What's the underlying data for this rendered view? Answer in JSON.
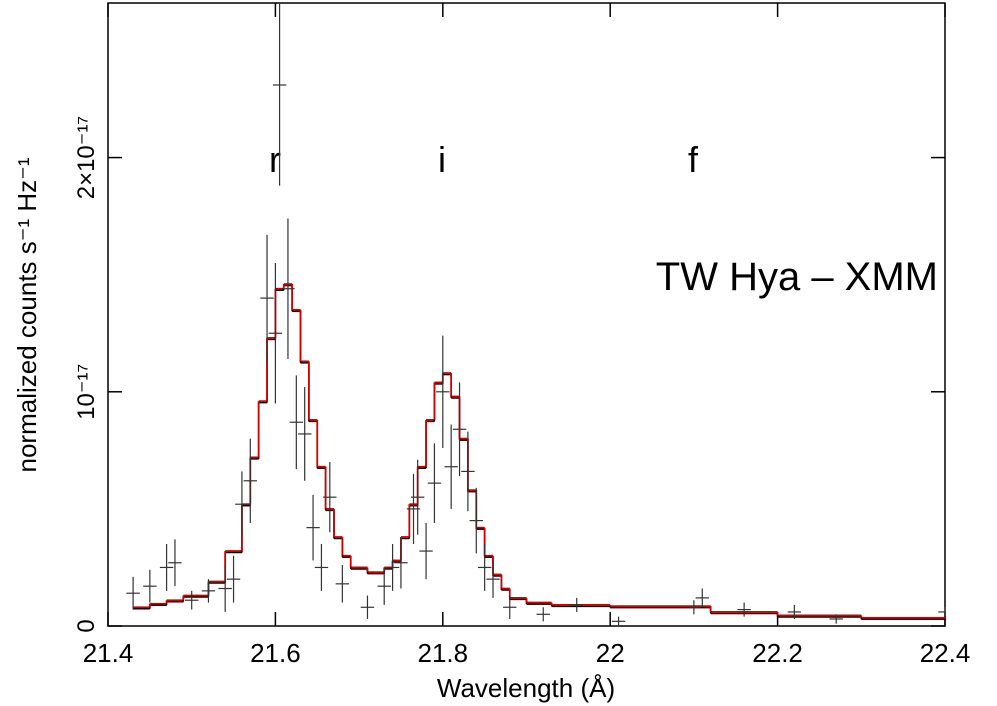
{
  "chart_data": {
    "type": "spectrum",
    "xlabel": "Wavelength (Å)",
    "ylabel": "normalized counts s⁻¹ Hz⁻¹",
    "annotations": [
      "r",
      "i",
      "f",
      "TW Hya – XMM"
    ],
    "xlim": [
      21.4,
      22.4
    ],
    "xticks": [
      21.4,
      21.6,
      21.8,
      22,
      22.2,
      22.4
    ],
    "ylim": [
      0,
      2.66e-17
    ],
    "yticks": [
      0,
      {
        "value": 1e-17,
        "label": "10⁻¹⁷"
      },
      {
        "value": 2e-17,
        "label": "2×10⁻¹⁷"
      }
    ],
    "data_color": "#333333",
    "xerr": 0.008,
    "x": [
      21.43,
      21.45,
      21.47,
      21.48,
      21.5,
      21.52,
      21.54,
      21.55,
      21.56,
      21.57,
      21.59,
      21.6,
      21.605,
      21.615,
      21.625,
      21.635,
      21.645,
      21.655,
      21.665,
      21.68,
      21.71,
      21.73,
      21.74,
      21.75,
      21.765,
      21.77,
      21.78,
      21.79,
      21.8,
      21.81,
      21.82,
      21.83,
      21.84,
      21.85,
      21.86,
      21.88,
      21.92,
      21.96,
      22.01,
      22.1,
      22.11,
      22.16,
      22.22,
      22.27,
      22.4
    ],
    "values": [
      1.4e-18,
      1.7e-18,
      2.5e-18,
      2.7e-18,
      1.1e-18,
      1.5e-18,
      1.6e-18,
      2e-18,
      5.2e-18,
      6.2e-18,
      1.4e-17,
      1.25e-17,
      2.31e-17,
      1.44e-17,
      8.7e-18,
      8.2e-18,
      4.2e-18,
      2.5e-18,
      5.5e-18,
      1.8e-18,
      8e-19,
      1.7e-18,
      2.5e-18,
      2.7e-18,
      5e-18,
      5.5e-18,
      3.2e-18,
      6.1e-18,
      1e-17,
      6.8e-18,
      8.4e-18,
      6.6e-18,
      4.5e-18,
      2.5e-18,
      2e-18,
      8e-19,
      5e-19,
      9e-19,
      2e-19,
      8e-19,
      1.2e-18,
      7e-19,
      6e-19,
      3e-19,
      6e-19
    ],
    "yerr": [
      7e-19,
      7e-19,
      1e-18,
      1e-18,
      4e-19,
      5e-19,
      1e-18,
      1e-18,
      1.4e-18,
      1.8e-18,
      2.7e-18,
      3e-18,
      4.3e-18,
      3e-18,
      2e-18,
      2e-18,
      1.4e-18,
      1e-18,
      1.5e-18,
      8e-19,
      5e-19,
      8e-19,
      1e-18,
      1.1e-18,
      1.5e-18,
      1.6e-18,
      1.2e-18,
      1.7e-18,
      2.4e-18,
      1.8e-18,
      2e-18,
      1.7e-18,
      1.4e-18,
      1e-18,
      8e-19,
      5e-19,
      3e-19,
      3e-19,
      2e-19,
      3e-19,
      4e-19,
      3e-19,
      3e-19,
      2e-19,
      2e-19
    ],
    "model": {
      "color": "#d00000",
      "bins": [
        21.43,
        21.45,
        21.47,
        21.49,
        21.52,
        21.54,
        21.56,
        21.57,
        21.58,
        21.59,
        21.6,
        21.61,
        21.62,
        21.63,
        21.64,
        21.65,
        21.66,
        21.67,
        21.68,
        21.69,
        21.71,
        21.73,
        21.74,
        21.75,
        21.76,
        21.77,
        21.78,
        21.79,
        21.8,
        21.81,
        21.82,
        21.83,
        21.84,
        21.85,
        21.86,
        21.87,
        21.88,
        21.9,
        21.93,
        22.0,
        22.12,
        22.2,
        22.3,
        22.4
      ],
      "values": [
        8e-19,
        9.5e-19,
        1.1e-18,
        1.3e-18,
        1.9e-18,
        3.2e-18,
        5.2e-18,
        7.2e-18,
        9.6e-18,
        1.23e-17,
        1.44e-17,
        1.46e-17,
        1.35e-17,
        1.13e-17,
        8.8e-18,
        6.8e-18,
        5e-18,
        3.8e-18,
        3e-18,
        2.5e-18,
        2.3e-18,
        2.5e-18,
        2.8e-18,
        3.8e-18,
        5.2e-18,
        6.8e-18,
        8.8e-18,
        1.04e-17,
        1.08e-17,
        9.8e-18,
        8e-18,
        5.8e-18,
        4.2e-18,
        3e-18,
        2.2e-18,
        1.6e-18,
        1.2e-18,
        1e-18,
        9e-19,
        8.5e-19,
        6e-19,
        4.5e-19,
        3.5e-19
      ]
    }
  }
}
